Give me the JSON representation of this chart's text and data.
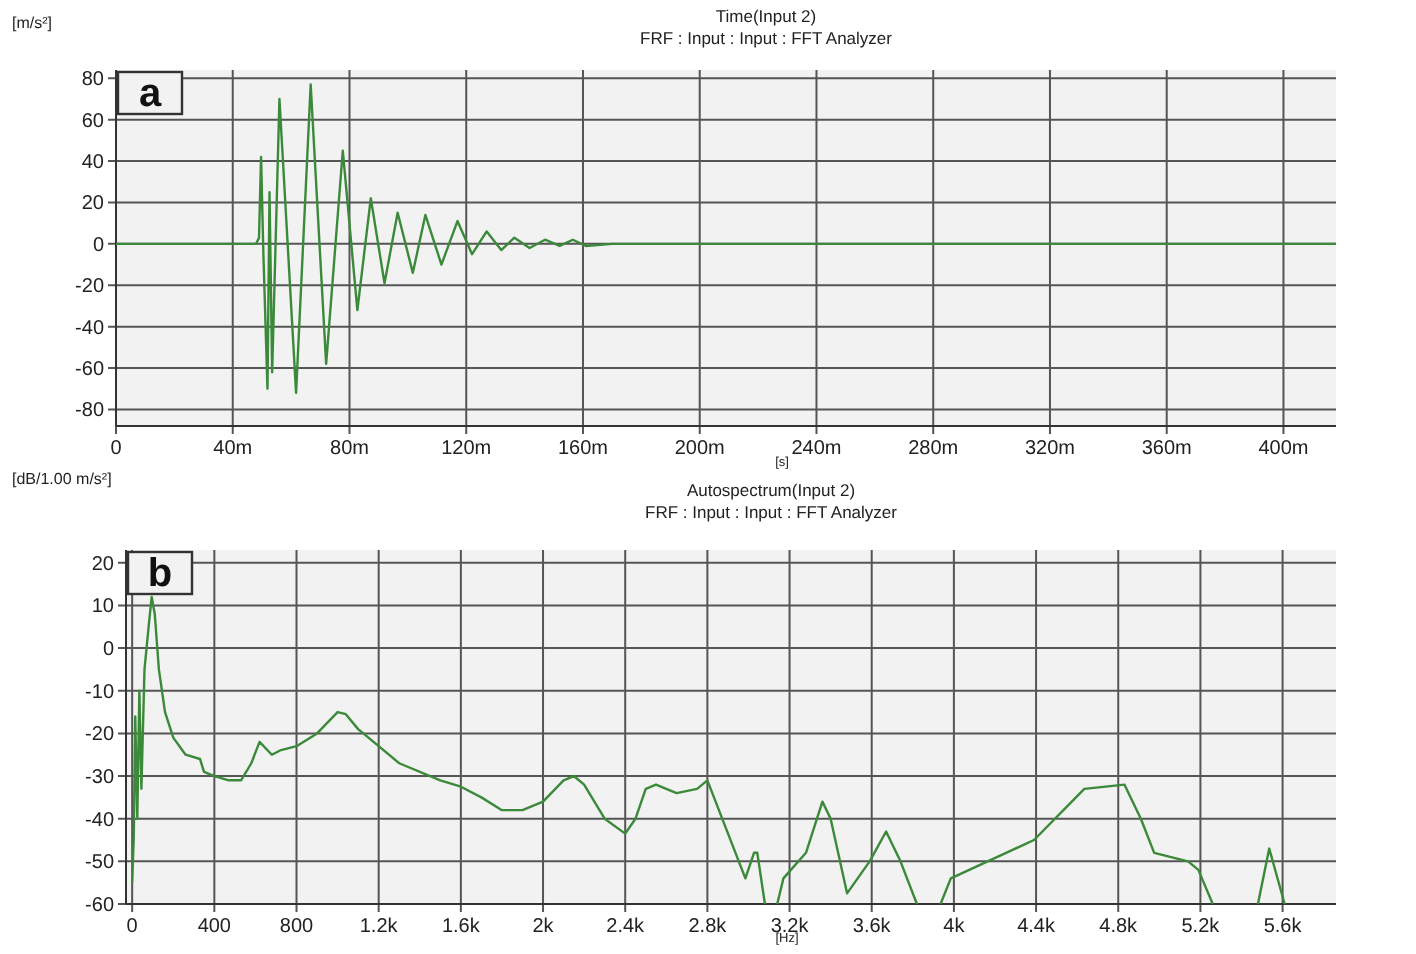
{
  "chart_data": [
    {
      "type": "line",
      "title": "Time(Input 2)",
      "subtitle": "FRF : Input : Input : FFT Analyzer",
      "ylabel": "[m/s²]",
      "xlabel": "[s]",
      "annotations": [
        "a"
      ],
      "grid": true,
      "xlim": [
        0,
        418
      ],
      "ylim": [
        -88,
        84
      ],
      "xticks": [
        0,
        {
          "value": 40,
          "label": "40m"
        },
        {
          "value": 80,
          "label": "80m"
        },
        {
          "value": 120,
          "label": "120m"
        },
        {
          "value": 160,
          "label": "160m"
        },
        {
          "value": 200,
          "label": "200m"
        },
        {
          "value": 240,
          "label": "240m"
        },
        {
          "value": 280,
          "label": "280m"
        },
        {
          "value": 320,
          "label": "320m"
        },
        {
          "value": 360,
          "label": "360m"
        },
        {
          "value": 400,
          "label": "400m"
        }
      ],
      "yticks": [
        -80,
        -60,
        -40,
        -20,
        0,
        20,
        40,
        60,
        80
      ],
      "series": [
        {
          "color": "#3a8a3a",
          "x": [
            0,
            48,
            49,
            49.7,
            50.5,
            51.9,
            52.6,
            53.5,
            56,
            61.7,
            66.7,
            72,
            77.7,
            82.7,
            87.3,
            92,
            96.5,
            101.7,
            106,
            111.5,
            117,
            122,
            127,
            132,
            136.5,
            141.7,
            147,
            152,
            156.5,
            161,
            170,
            418
          ],
          "values": [
            0,
            0,
            3,
            42,
            -5,
            -70,
            25,
            -62,
            70,
            -72,
            77,
            -58,
            45,
            -32,
            22,
            -19,
            15,
            -14,
            14,
            -10,
            11,
            -5,
            6,
            -3,
            3,
            -2,
            2,
            -1,
            2,
            -1,
            0,
            0
          ]
        }
      ]
    },
    {
      "type": "line",
      "title": "Autospectrum(Input 2)",
      "subtitle": "FRF : Input : Input : FFT Analyzer",
      "ylabel": "[dB/1.00 m/s²]",
      "xlabel": "[Hz]",
      "annotations": [
        "b"
      ],
      "grid": true,
      "xlim": [
        -30,
        5860
      ],
      "ylim": [
        -60,
        23
      ],
      "xticks": [
        0,
        400,
        800,
        {
          "value": 1200,
          "label": "1.2k"
        },
        {
          "value": 1600,
          "label": "1.6k"
        },
        {
          "value": 2000,
          "label": "2k"
        },
        {
          "value": 2400,
          "label": "2.4k"
        },
        {
          "value": 2800,
          "label": "2.8k"
        },
        {
          "value": 3200,
          "label": "3.2k"
        },
        {
          "value": 3600,
          "label": "3.6k"
        },
        {
          "value": 4000,
          "label": "4k"
        },
        {
          "value": 4400,
          "label": "4.4k"
        },
        {
          "value": 4800,
          "label": "4.8k"
        },
        {
          "value": 5200,
          "label": "5.2k"
        },
        {
          "value": 5600,
          "label": "5.6k"
        }
      ],
      "yticks": [
        -60,
        -50,
        -40,
        -30,
        -20,
        -10,
        0,
        10,
        20
      ],
      "series": [
        {
          "color": "#3a8a3a",
          "x": [
            0,
            8,
            15,
            25,
            35,
            45,
            60,
            80,
            95,
            110,
            130,
            160,
            200,
            260,
            330,
            350,
            400,
            470,
            530,
            580,
            620,
            680,
            720,
            800,
            900,
            1000,
            1040,
            1100,
            1200,
            1300,
            1500,
            1600,
            1700,
            1800,
            1900,
            2000,
            2100,
            2150,
            2200,
            2300,
            2400,
            2450,
            2500,
            2550,
            2650,
            2750,
            2800,
            2985,
            3027,
            3043,
            3080,
            3110,
            3140,
            3170,
            3280,
            3360,
            3400,
            3480,
            3590,
            3670,
            3740,
            3820,
            3880,
            3935,
            3985,
            4390,
            4635,
            4830,
            4910,
            4975,
            5140,
            5190,
            5260,
            5370,
            5480,
            5535,
            5610
          ],
          "values": [
            -55,
            -44,
            -16,
            -40,
            -10,
            -33,
            -5,
            5,
            12,
            8,
            -5,
            -15,
            -21,
            -25,
            -26,
            -29,
            -30,
            -31,
            -31,
            -27,
            -22,
            -25,
            -24,
            -23,
            -20,
            -15,
            -15.5,
            -19,
            -23,
            -27,
            -31,
            -32.5,
            -35,
            -38,
            -38,
            -36,
            -31,
            -30,
            -32,
            -40,
            -43.5,
            -40,
            -33,
            -32,
            -34,
            -33,
            -31,
            -54,
            -48,
            -48,
            -60,
            null,
            -60,
            -54,
            -48,
            -36,
            -40,
            -57.5,
            -50,
            -43,
            -50,
            -60,
            null,
            -60,
            -54,
            -45,
            -33,
            -32,
            -40,
            -48,
            -50,
            -52,
            -60,
            null,
            -60,
            -47,
            -60
          ]
        }
      ]
    }
  ]
}
